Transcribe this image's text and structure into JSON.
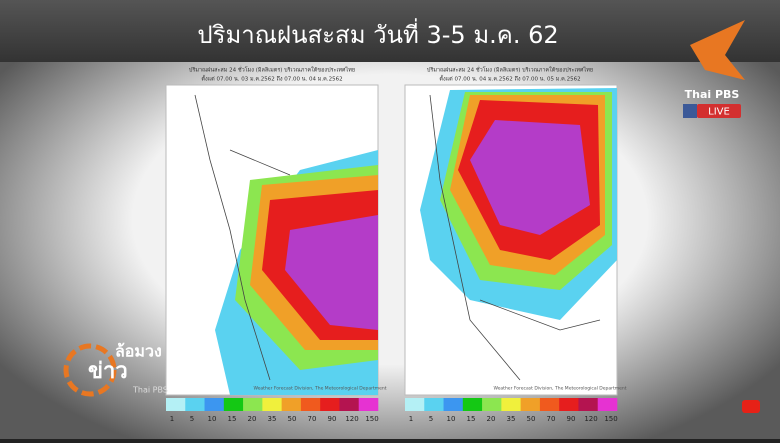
{
  "header": {
    "title": "ปริมาณฝนสะสม วันที่ 3-5 ม.ค. 62"
  },
  "maps": [
    {
      "caption_line1": "ปริมาณฝนสะสม 24 ชั่วโมง (มิลลิเมตร) บริเวณภาคใต้ของประเทศไทย",
      "caption_line2": "ตั้งแต่ 07.00 น. 03 ม.ค.2562 ถึง 07.00 น. 04 ม.ค.2562",
      "credit": "Weather Forecast Division, The Meteorological Department"
    },
    {
      "caption_line1": "ปริมาณฝนสะสม 24 ชั่วโมง (มิลลิเมตร) บริเวณภาคใต้ของประเทศไทย",
      "caption_line2": "ตั้งแต่ 07.00 น. 04 ม.ค.2562 ถึง 07.00 น. 05 ม.ค.2562",
      "credit": "Weather Forecast Division, The Meteorological Department"
    }
  ],
  "legend": {
    "labels": [
      "1",
      "5",
      "10",
      "15",
      "20",
      "35",
      "50",
      "70",
      "90",
      "120",
      "150"
    ],
    "colors": [
      "#b4f0f5",
      "#5ad2f0",
      "#3c96f0",
      "#14c814",
      "#8ce650",
      "#f0f03c",
      "#f0a028",
      "#f05a1e",
      "#e61e1e",
      "#b41450",
      "#e632d2"
    ]
  },
  "logo": {
    "brand": "Thai PBS",
    "live": "LIVE"
  },
  "show": {
    "name_top": "ล้อมวง",
    "name_bottom": "ข่าว",
    "brand": "Thai PBS"
  }
}
